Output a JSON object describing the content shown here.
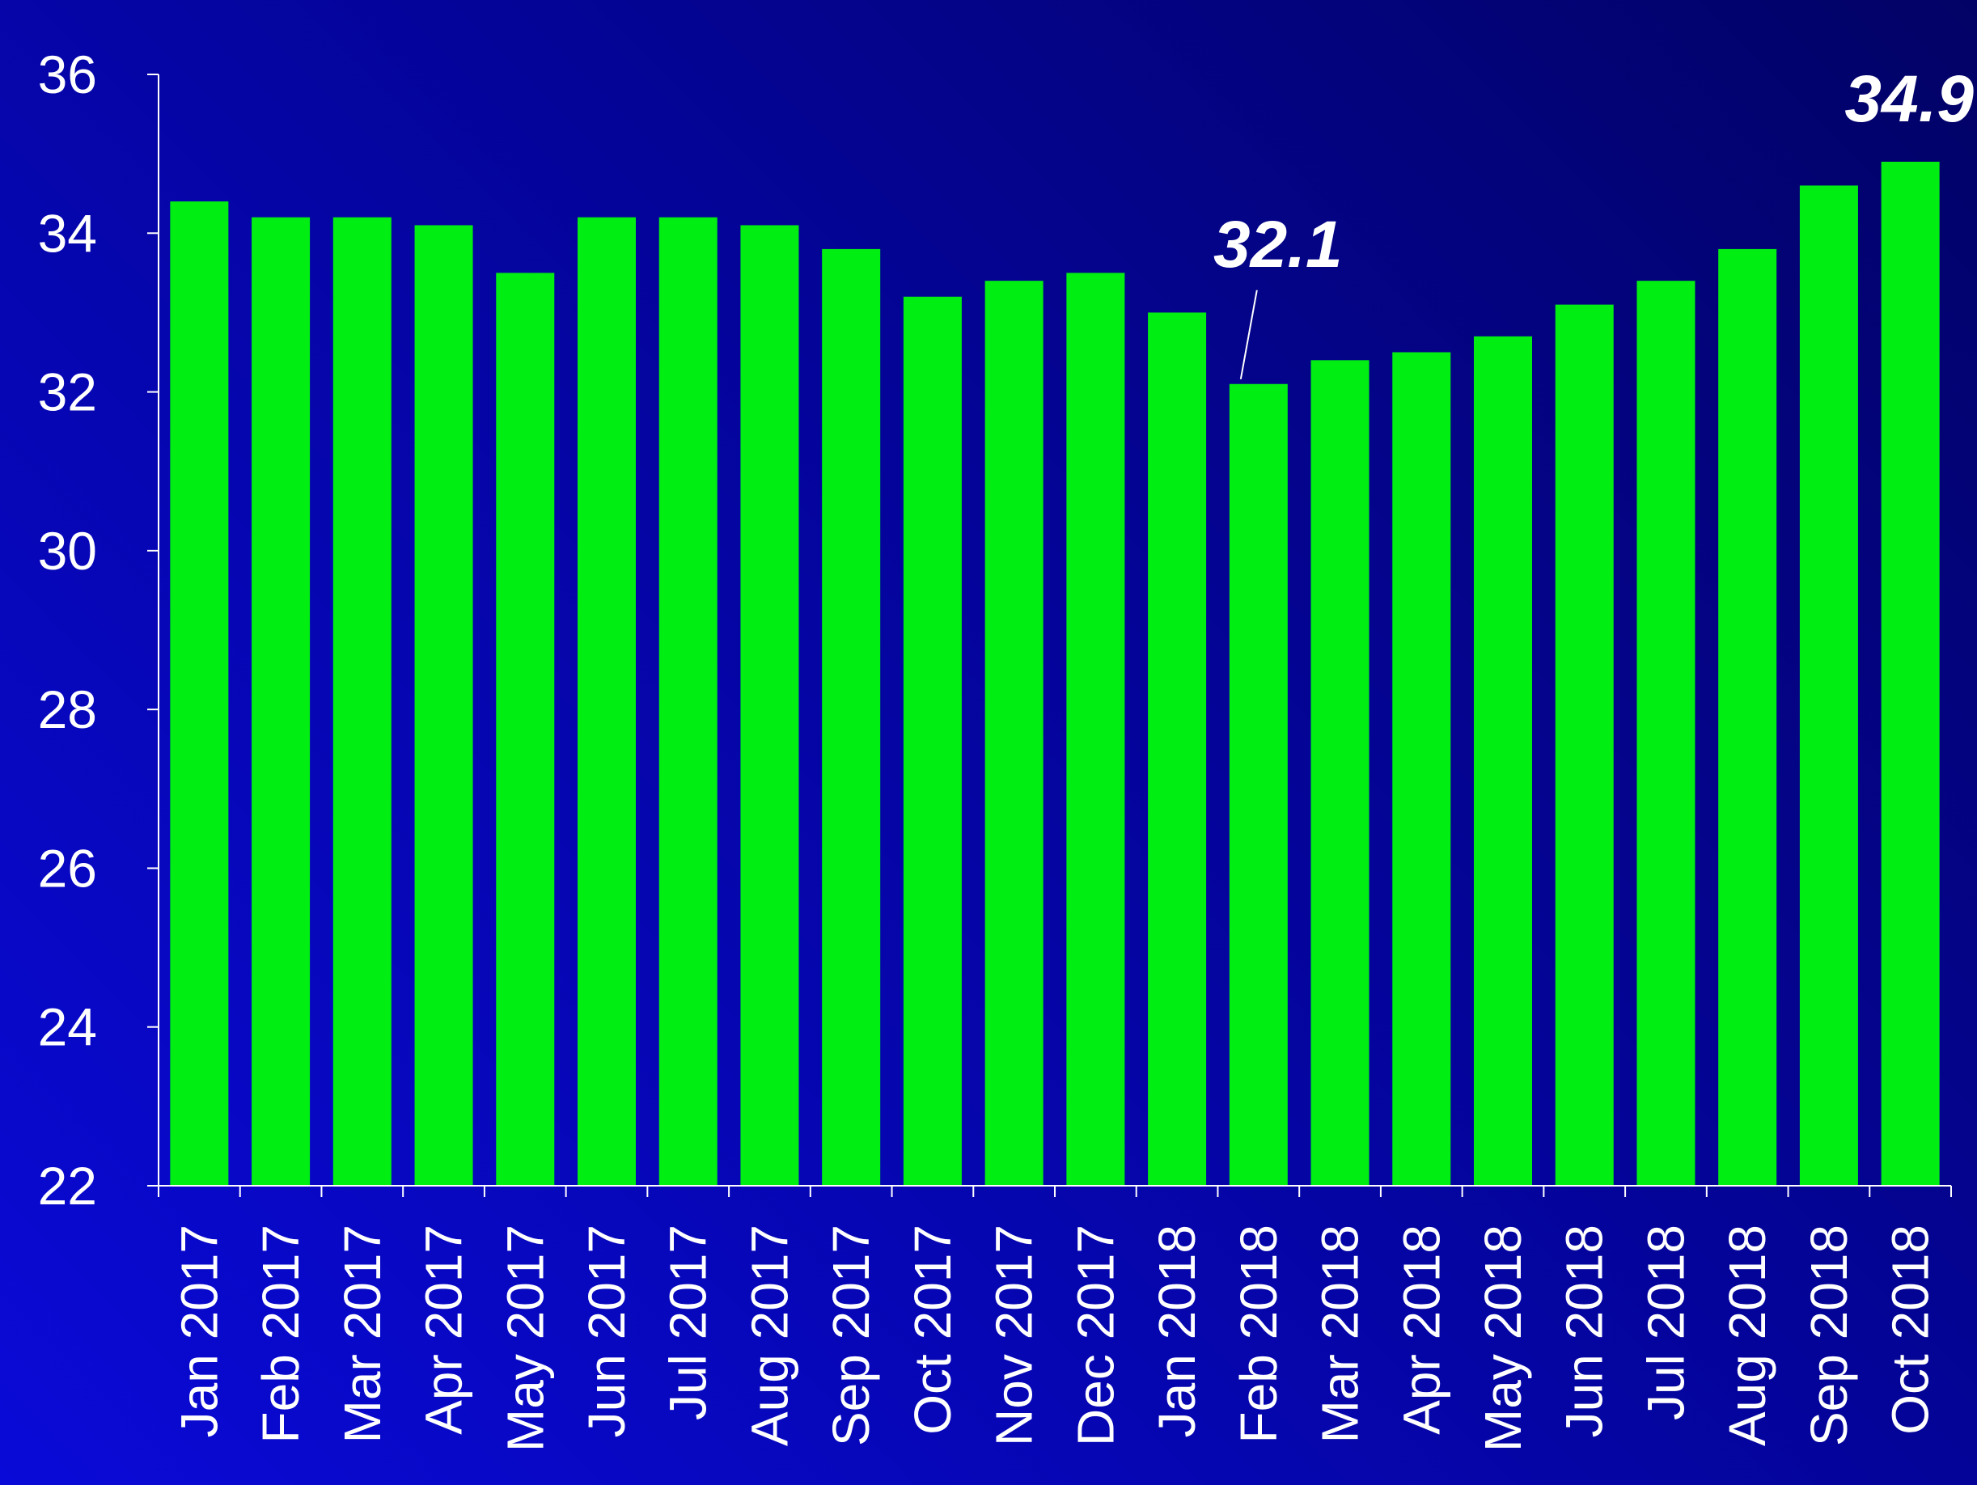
{
  "chart_data": {
    "type": "bar",
    "title": "",
    "xlabel": "",
    "ylabel": "",
    "ylim": [
      22,
      36
    ],
    "yticks": [
      22,
      24,
      26,
      28,
      30,
      32,
      34,
      36
    ],
    "categories": [
      "Jan 2017",
      "Feb 2017",
      "Mar 2017",
      "Apr 2017",
      "May 2017",
      "Jun 2017",
      "Jul 2017",
      "Aug 2017",
      "Sep 2017",
      "Oct 2017",
      "Nov 2017",
      "Dec 2017",
      "Jan 2018",
      "Feb 2018",
      "Mar 2018",
      "Apr 2018",
      "May 2018",
      "Jun 2018",
      "Jul 2018",
      "Aug 2018",
      "Sep 2018",
      "Oct 2018"
    ],
    "values": [
      34.4,
      34.2,
      34.2,
      34.1,
      33.5,
      34.2,
      34.2,
      34.1,
      33.8,
      33.2,
      33.4,
      33.5,
      33.0,
      32.1,
      32.4,
      32.5,
      32.7,
      33.1,
      33.4,
      33.8,
      34.6,
      34.9
    ],
    "annotations": [
      {
        "category": "Feb 2018",
        "text": "32.1"
      },
      {
        "category": "Oct 2018",
        "text": "34.9"
      }
    ],
    "grid": false,
    "colors": {
      "bar": "#00ee11",
      "axis": "#ffffff",
      "text": "#ffffff"
    }
  }
}
